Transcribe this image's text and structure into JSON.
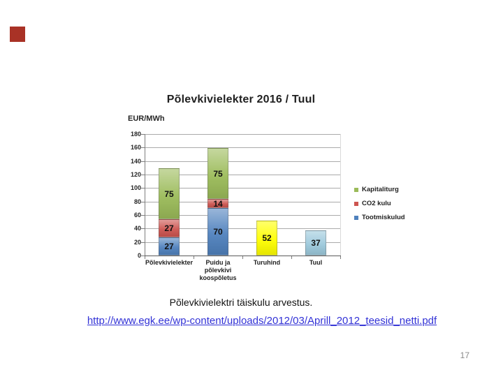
{
  "slide": {
    "caption": "Põlevkivielektri täiskulu arvestus.",
    "link": "http://www.egk.ee/wp-content/uploads/2012/03/Aprill_2012_teesid_netti.pdf",
    "link_color": "#3232d6",
    "page_number": "17",
    "accent_square_color": "#a93226"
  },
  "chart_data": {
    "type": "bar",
    "stacked": true,
    "title": "Põlevkivielekter 2016 / Tuul",
    "axis_unit_label": "EUR/MWh",
    "ylim": [
      0,
      180
    ],
    "ytick_step": 20,
    "grid": true,
    "legend_position": "right",
    "categories": [
      "Põlevkivielekter",
      "Puidu ja põlevkivi koospõletus",
      "Turuhind",
      "Tuul"
    ],
    "category_label_lines": [
      [
        "Põlevkivielekter"
      ],
      [
        "Puidu ja",
        "põlevkivi",
        "koospõletus"
      ],
      [
        "Turuhind"
      ],
      [
        "Tuul"
      ]
    ],
    "series": [
      {
        "name": "Tootmiskulud",
        "color": "#4f81bd",
        "values": [
          27,
          70,
          null,
          null
        ]
      },
      {
        "name": "CO2 kulu",
        "color": "#cd5550",
        "values": [
          27,
          14,
          null,
          null
        ]
      },
      {
        "name": "Kapitaliturg",
        "color": "#9bbb59",
        "values": [
          75,
          75,
          null,
          null
        ]
      },
      {
        "name": "Turuhind",
        "color": "#ffff00",
        "values": [
          null,
          null,
          52,
          null
        ]
      },
      {
        "name": "Tuul",
        "color": "#9cc9dc",
        "values": [
          null,
          null,
          null,
          37
        ]
      }
    ],
    "totals": [
      129,
      159,
      52,
      37
    ],
    "legend": [
      {
        "label": "Kapitaliturg",
        "color": "#9bbb59"
      },
      {
        "label": "CO2 kulu",
        "color": "#cd5550"
      },
      {
        "label": "Tootmiskulud",
        "color": "#4f81bd"
      }
    ]
  }
}
